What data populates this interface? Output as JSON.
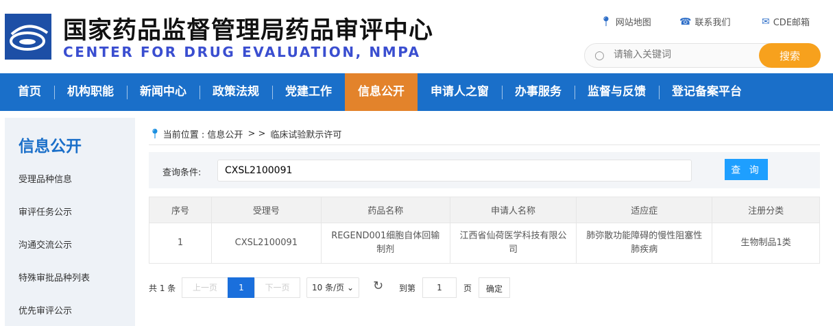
{
  "header": {
    "title_cn": "国家药品监督管理局药品审评中心",
    "title_en": "CENTER FOR DRUG EVALUATION, NMPA",
    "links": [
      {
        "label": "网站地图",
        "icon": "map-pin-icon"
      },
      {
        "label": "联系我们",
        "icon": "phone-icon"
      },
      {
        "label": "CDE邮箱",
        "icon": "mail-icon"
      }
    ],
    "search": {
      "placeholder": "请输入关键词",
      "button": "搜索"
    }
  },
  "nav": {
    "items": [
      "首页",
      "机构职能",
      "新闻中心",
      "政策法规",
      "党建工作",
      "信息公开",
      "申请人之窗",
      "办事服务",
      "监督与反馈",
      "登记备案平台"
    ],
    "active": "信息公开"
  },
  "sidebar": {
    "title": "信息公开",
    "items": [
      "受理品种信息",
      "审评任务公示",
      "沟通交流公示",
      "特殊审批品种列表",
      "优先审评公示"
    ]
  },
  "breadcrumb": {
    "prefix": "当前位置 : 信息公开",
    "sep": "> >",
    "current": "临床试验默示许可"
  },
  "query": {
    "label": "查询条件:",
    "value": "CXSL2100091",
    "button": "查 询"
  },
  "table": {
    "columns": [
      "序号",
      "受理号",
      "药品名称",
      "申请人名称",
      "适应症",
      "注册分类"
    ],
    "rows": [
      [
        "1",
        "CXSL2100091",
        "REGEND001细胞自体回输制剂",
        "江西省仙荷医学科技有限公司",
        "肺弥散功能障碍的慢性阻塞性肺疾病",
        "生物制品1类"
      ]
    ]
  },
  "pagination": {
    "total": "共 1 条",
    "prev": "上一页",
    "current": "1",
    "next": "下一页",
    "page_size": "10 条/页",
    "goto_label": "到第",
    "goto_value": "1",
    "page_unit": "页",
    "confirm": "确定"
  },
  "colors": {
    "nav": "#1a6fc9",
    "active_nav": "#e3832b",
    "search_button": "#f7a11d",
    "query_button": "#1e9fff",
    "current_page": "#1a6fdc"
  }
}
